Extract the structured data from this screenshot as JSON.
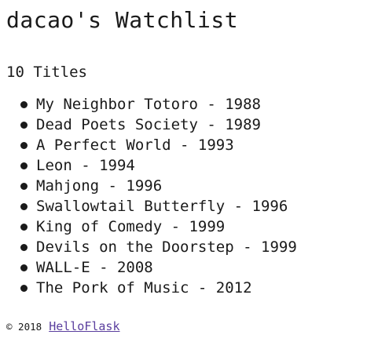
{
  "header": {
    "title": "dacao's Watchlist"
  },
  "summary": {
    "count_text": "10 Titles"
  },
  "movies": [
    {
      "title": "My Neighbor Totoro",
      "year": "1988"
    },
    {
      "title": "Dead Poets Society",
      "year": "1989"
    },
    {
      "title": "A Perfect World",
      "year": "1993"
    },
    {
      "title": "Leon",
      "year": "1994"
    },
    {
      "title": "Mahjong",
      "year": "1996"
    },
    {
      "title": "Swallowtail Butterfly",
      "year": "1996"
    },
    {
      "title": "King of Comedy",
      "year": "1999"
    },
    {
      "title": "Devils on the Doorstep",
      "year": "1999"
    },
    {
      "title": "WALL-E",
      "year": "2008"
    },
    {
      "title": "The Pork of Music",
      "year": "2012"
    }
  ],
  "footer": {
    "copyright": "© 2018",
    "link_text": "HelloFlask",
    "link_color": "#5a3e9e"
  }
}
